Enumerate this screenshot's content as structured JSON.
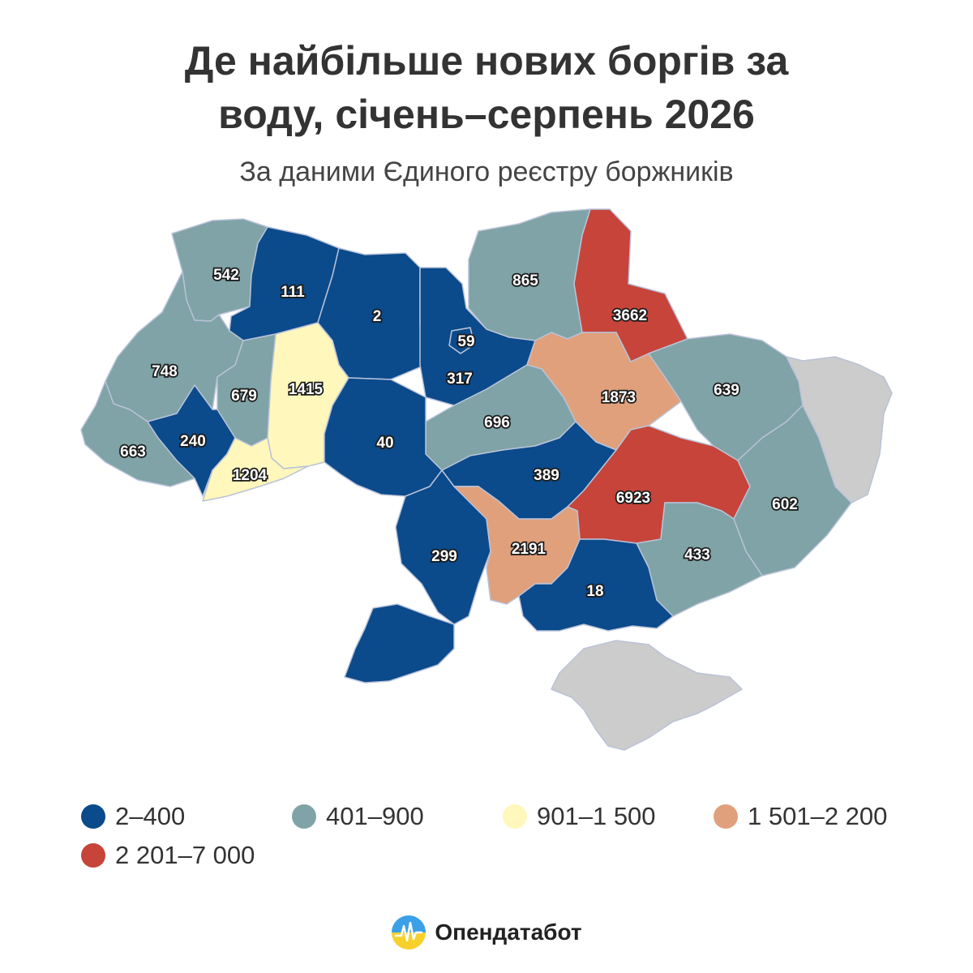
{
  "header": {
    "title_line1": "Де найбільше нових боргів за",
    "title_line2": "воду, січень–серпень 2026",
    "subtitle": "За даними Єдиного реєстру боржників"
  },
  "colors": {
    "bin1": "#0b4a8b",
    "bin2": "#7fa3a6",
    "bin3": "#fff7bc",
    "bin4": "#e0a07c",
    "bin5": "#c6443a",
    "no_data": "#cccccc",
    "border": "#b9c2d8"
  },
  "legend": [
    {
      "label": "2–400",
      "color": "#0b4a8b"
    },
    {
      "label": "401–900",
      "color": "#7fa3a6"
    },
    {
      "label": "901–1 500",
      "color": "#fff7bc"
    },
    {
      "label": "1 501–2 200",
      "color": "#e0a07c"
    },
    {
      "label": "2 201–7 000",
      "color": "#c6443a"
    }
  ],
  "regions": [
    {
      "value": 542,
      "label": "542"
    },
    {
      "value": 111,
      "label": "111"
    },
    {
      "value": 2,
      "label": "2"
    },
    {
      "value": 59,
      "label": "59"
    },
    {
      "value": 865,
      "label": "865"
    },
    {
      "value": 3662,
      "label": "3662"
    },
    {
      "value": 748,
      "label": "748"
    },
    {
      "value": 679,
      "label": "679"
    },
    {
      "value": 1415,
      "label": "1415"
    },
    {
      "value": 317,
      "label": "317"
    },
    {
      "value": 1873,
      "label": "1873"
    },
    {
      "value": 639,
      "label": "639"
    },
    {
      "value": 696,
      "label": "696"
    },
    {
      "value": 663,
      "label": "663"
    },
    {
      "value": 240,
      "label": "240"
    },
    {
      "value": 40,
      "label": "40"
    },
    {
      "value": 1204,
      "label": "1204"
    },
    {
      "value": 389,
      "label": "389"
    },
    {
      "value": 6923,
      "label": "6923"
    },
    {
      "value": 602,
      "label": "602"
    },
    {
      "value": 299,
      "label": "299"
    },
    {
      "value": 2191,
      "label": "2191"
    },
    {
      "value": 433,
      "label": "433"
    },
    {
      "value": 18,
      "label": "18"
    },
    {
      "value": null,
      "label": ""
    },
    {
      "value": null,
      "label": ""
    }
  ],
  "brand": {
    "name": "Опендатабот"
  }
}
